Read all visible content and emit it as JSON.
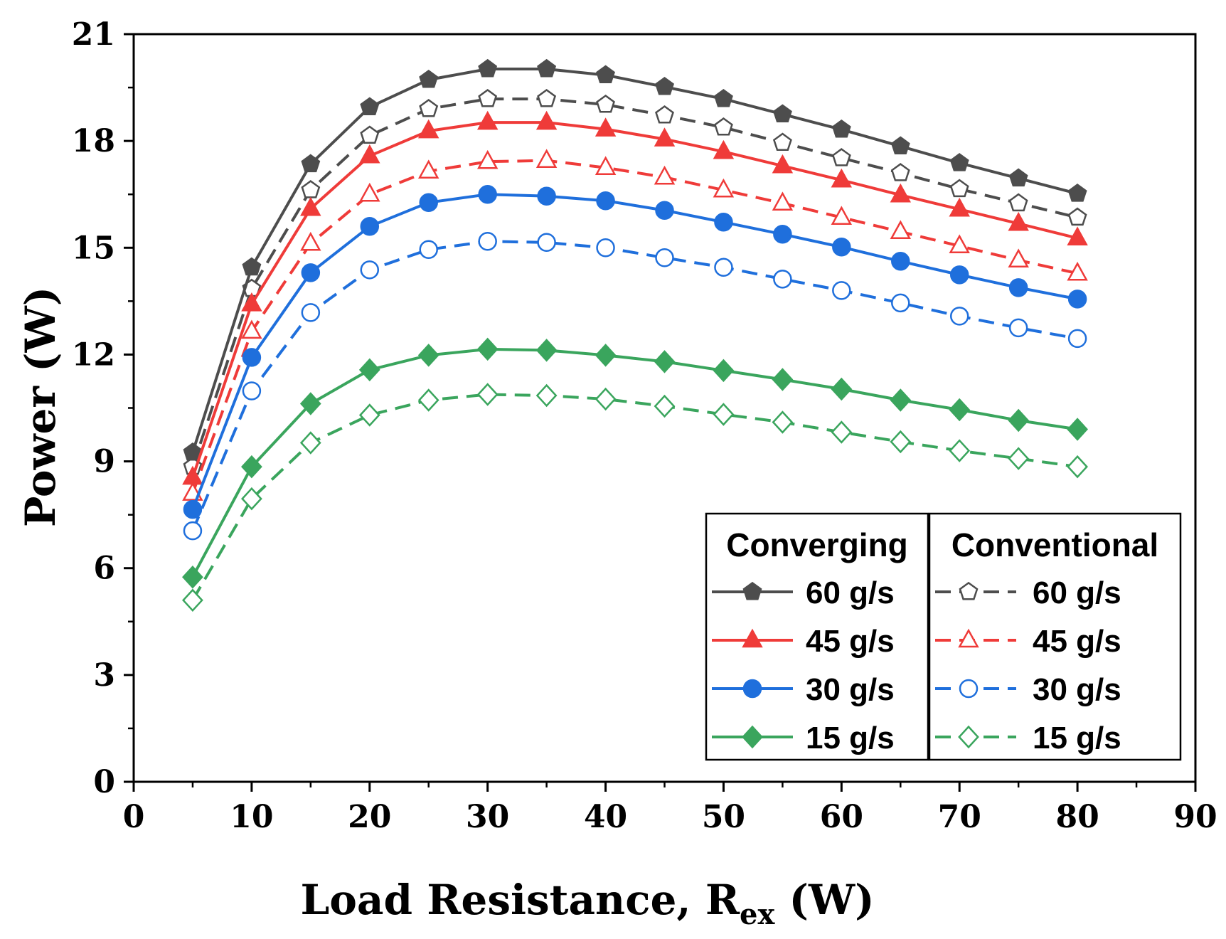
{
  "chart_data": {
    "type": "line",
    "title": "",
    "xlabel": "Load Resistance, R",
    "xlabel_subscript": "ex",
    "xlabel_unit": " (W)",
    "ylabel": "Power (W)",
    "xlim": [
      0,
      90
    ],
    "ylim": [
      0,
      21
    ],
    "xticks": [
      0,
      10,
      20,
      30,
      40,
      50,
      60,
      70,
      80,
      90
    ],
    "yticks": [
      0,
      3,
      6,
      9,
      12,
      15,
      18,
      21
    ],
    "x": [
      5,
      10,
      15,
      20,
      25,
      30,
      35,
      40,
      45,
      50,
      55,
      60,
      65,
      70,
      75,
      80
    ],
    "legend_groups": [
      "Converging",
      "Conventional"
    ],
    "series": [
      {
        "name": "60 g/s",
        "group": "Converging",
        "color": "#4d4d4d",
        "marker": "pentagon",
        "filled": true,
        "dashed": false,
        "values": [
          9.25,
          14.45,
          17.35,
          18.95,
          19.72,
          20.02,
          20.02,
          19.85,
          19.52,
          19.18,
          18.75,
          18.32,
          17.85,
          17.38,
          16.95,
          16.52
        ]
      },
      {
        "name": "45 g/s",
        "group": "Converging",
        "color": "#ef3b39",
        "marker": "triangle",
        "filled": true,
        "dashed": false,
        "values": [
          8.55,
          13.42,
          16.1,
          17.58,
          18.28,
          18.52,
          18.52,
          18.33,
          18.05,
          17.7,
          17.3,
          16.9,
          16.48,
          16.08,
          15.68,
          15.27
        ]
      },
      {
        "name": "30 g/s",
        "group": "Converging",
        "color": "#1f6fdc",
        "marker": "circle",
        "filled": true,
        "dashed": false,
        "values": [
          7.65,
          11.92,
          14.3,
          15.6,
          16.27,
          16.5,
          16.45,
          16.32,
          16.05,
          15.72,
          15.38,
          15.02,
          14.62,
          14.24,
          13.88,
          13.56
        ]
      },
      {
        "name": "15 g/s",
        "group": "Converging",
        "color": "#3aa55d",
        "marker": "diamond",
        "filled": true,
        "dashed": false,
        "values": [
          5.75,
          8.85,
          10.62,
          11.57,
          11.98,
          12.15,
          12.12,
          11.98,
          11.8,
          11.55,
          11.3,
          11.03,
          10.72,
          10.45,
          10.15,
          9.9
        ]
      },
      {
        "name": "60 g/s",
        "group": "Conventional",
        "color": "#4d4d4d",
        "marker": "pentagon",
        "filled": false,
        "dashed": true,
        "values": [
          8.85,
          13.85,
          16.62,
          18.15,
          18.9,
          19.18,
          19.18,
          19.02,
          18.72,
          18.38,
          17.95,
          17.52,
          17.1,
          16.65,
          16.25,
          15.85
        ]
      },
      {
        "name": "45 g/s",
        "group": "Conventional",
        "color": "#ef3b39",
        "marker": "triangle",
        "filled": false,
        "dashed": true,
        "values": [
          8.1,
          12.65,
          15.12,
          16.5,
          17.15,
          17.42,
          17.45,
          17.25,
          16.98,
          16.62,
          16.25,
          15.85,
          15.45,
          15.05,
          14.65,
          14.28
        ]
      },
      {
        "name": "30 g/s",
        "group": "Conventional",
        "color": "#1f6fdc",
        "marker": "circle",
        "filled": false,
        "dashed": true,
        "values": [
          7.05,
          10.98,
          13.18,
          14.38,
          14.95,
          15.18,
          15.15,
          15.0,
          14.72,
          14.45,
          14.12,
          13.8,
          13.45,
          13.08,
          12.75,
          12.45
        ]
      },
      {
        "name": "15 g/s",
        "group": "Conventional",
        "color": "#3aa55d",
        "marker": "diamond",
        "filled": false,
        "dashed": true,
        "values": [
          5.1,
          7.95,
          9.52,
          10.3,
          10.72,
          10.88,
          10.85,
          10.75,
          10.55,
          10.32,
          10.1,
          9.82,
          9.55,
          9.3,
          9.08,
          8.85
        ]
      }
    ]
  }
}
